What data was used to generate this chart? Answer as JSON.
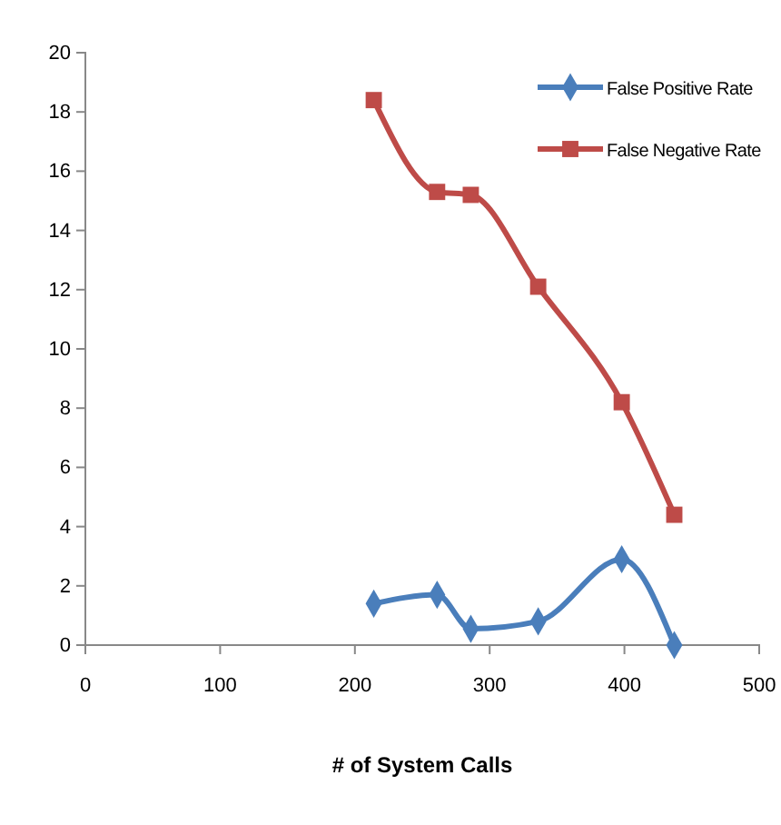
{
  "chart_data": {
    "type": "line",
    "xlabel": "# of System Calls",
    "xlim": [
      0,
      500
    ],
    "xticks": [
      0,
      100,
      200,
      300,
      400,
      500
    ],
    "ylim": [
      0,
      20
    ],
    "yticks": [
      0,
      2,
      4,
      6,
      8,
      10,
      12,
      14,
      16,
      18,
      20
    ],
    "grid": false,
    "legend": "top right",
    "line_style": "solid",
    "series": [
      {
        "name": "False Positive Rate",
        "color": "#4a7ebb",
        "marker": "diamond",
        "x": [
          214,
          261,
          286,
          336,
          398,
          437
        ],
        "values": [
          1.4,
          1.7,
          0.55,
          0.8,
          2.9,
          0
        ]
      },
      {
        "name": "False Negative Rate",
        "color": "#be4b48",
        "marker": "square",
        "x": [
          214,
          261,
          286,
          336,
          398,
          437
        ],
        "values": [
          18.4,
          15.3,
          15.2,
          12.1,
          8.2,
          4.4
        ]
      }
    ]
  }
}
